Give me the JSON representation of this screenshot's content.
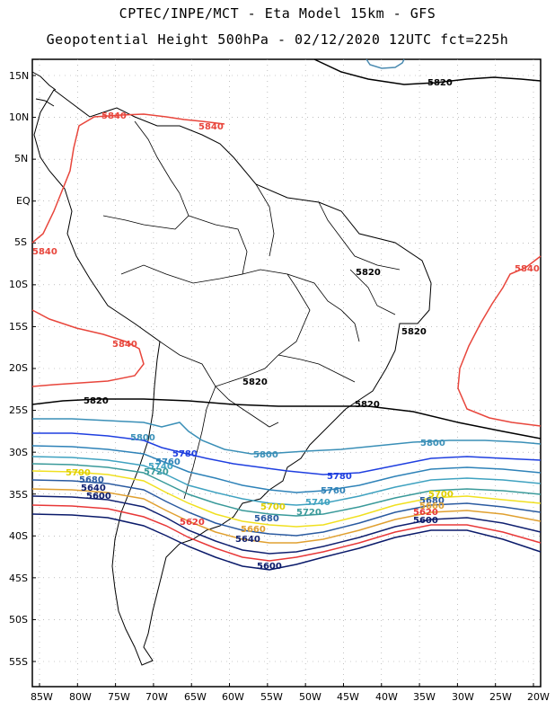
{
  "header": {
    "line1": "CPTEC/INPE/MCT -  Eta Model 15km - GFS",
    "line2": "Geopotential Height 500hPa - 02/12/2020 12UTC fct=225h"
  },
  "axes": {
    "lat_labels": [
      "15N",
      "10N",
      "5N",
      "EQ",
      "5S",
      "10S",
      "15S",
      "20S",
      "25S",
      "30S",
      "35S",
      "40S",
      "45S",
      "50S",
      "55S"
    ],
    "lon_labels": [
      "85W",
      "80W",
      "75W",
      "70W",
      "65W",
      "60W",
      "55W",
      "50W",
      "45W",
      "40W",
      "35W",
      "30W",
      "25W",
      "20W"
    ]
  },
  "contours": [
    {
      "value": "5840",
      "color": "#e8463c"
    },
    {
      "value": "5820",
      "color": "#000000"
    },
    {
      "value": "5800",
      "color": "#3a8fb7"
    },
    {
      "value": "5780",
      "color": "#1f3fe0"
    },
    {
      "value": "5760",
      "color": "#2e82b8"
    },
    {
      "value": "5740",
      "color": "#3fa2c0"
    },
    {
      "value": "5720",
      "color": "#3a9a9a"
    },
    {
      "value": "5700",
      "color": "#f0e020"
    },
    {
      "value": "5680",
      "color": "#2a5aa0"
    },
    {
      "value": "5660",
      "color": "#e0a030"
    },
    {
      "value": "5640",
      "color": "#102070"
    },
    {
      "value": "5620",
      "color": "#e83838"
    },
    {
      "value": "5600",
      "color": "#0a1a6a"
    }
  ],
  "top_contour": {
    "value": "5820",
    "color": "#4a8ab0"
  }
}
